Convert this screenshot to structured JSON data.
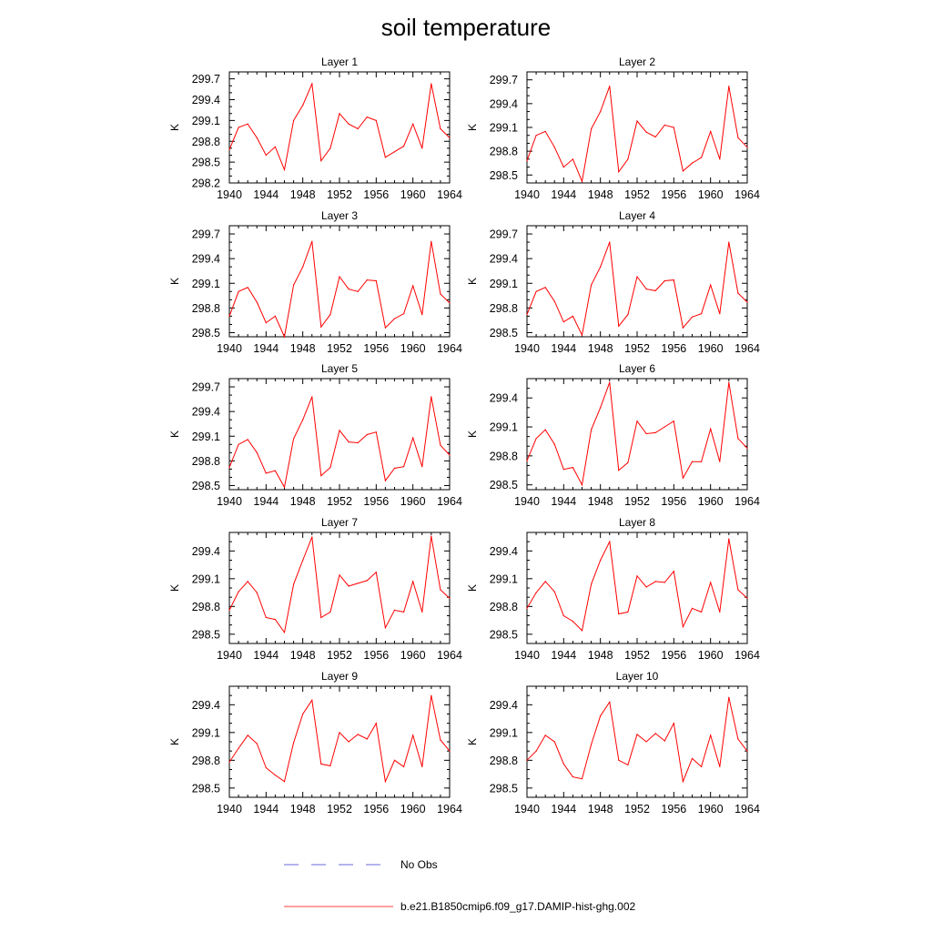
{
  "figure": {
    "title": "soil temperature"
  },
  "legend": {
    "obs_label": "No Obs",
    "obs_color": "#6a6ad8",
    "model_label": "b.e21.B1850cmip6.f09_g17.DAMIP-hist-ghg.002",
    "model_color": "#ff0000"
  },
  "chart_data": [
    {
      "type": "line",
      "title": "Layer 1",
      "ylabel": "K",
      "xlim": [
        1940,
        1964
      ],
      "ylim": [
        298.2,
        299.8
      ],
      "xticks": [
        "1940",
        "1944",
        "1948",
        "1952",
        "1956",
        "1960",
        "1964"
      ],
      "yticks": [
        "298.2",
        "298.5",
        "298.8",
        "299.1",
        "299.4",
        "299.7"
      ],
      "x": [
        1940,
        1941,
        1942,
        1943,
        1944,
        1945,
        1946,
        1947,
        1948,
        1949,
        1950,
        1951,
        1952,
        1953,
        1954,
        1955,
        1956,
        1957,
        1958,
        1959,
        1960,
        1961,
        1962,
        1963,
        1964
      ],
      "series": [
        {
          "name": "b.e21.B1850cmip6.f09_g17.DAMIP-hist-ghg.002",
          "values": [
            298.68,
            299.0,
            299.05,
            298.85,
            298.6,
            298.72,
            298.39,
            299.1,
            299.32,
            299.63,
            298.52,
            298.7,
            299.2,
            299.05,
            298.98,
            299.15,
            299.1,
            298.57,
            298.65,
            298.73,
            299.05,
            298.7,
            299.63,
            298.98,
            298.85
          ]
        }
      ]
    },
    {
      "type": "line",
      "title": "Layer 2",
      "ylabel": "K",
      "xlim": [
        1940,
        1964
      ],
      "ylim": [
        298.4,
        299.8
      ],
      "xticks": [
        "1940",
        "1944",
        "1948",
        "1952",
        "1956",
        "1960",
        "1964"
      ],
      "yticks": [
        "298.5",
        "298.8",
        "299.1",
        "299.4",
        "299.7"
      ],
      "x": [
        1940,
        1941,
        1942,
        1943,
        1944,
        1945,
        1946,
        1947,
        1948,
        1949,
        1950,
        1951,
        1952,
        1953,
        1954,
        1955,
        1956,
        1957,
        1958,
        1959,
        1960,
        1961,
        1962,
        1963,
        1964
      ],
      "series": [
        {
          "name": "b.e21.B1850cmip6.f09_g17.DAMIP-hist-ghg.002",
          "values": [
            298.68,
            299.0,
            299.05,
            298.85,
            298.6,
            298.7,
            298.42,
            299.08,
            299.3,
            299.62,
            298.54,
            298.7,
            299.18,
            299.04,
            298.98,
            299.13,
            299.1,
            298.55,
            298.65,
            298.72,
            299.05,
            298.7,
            299.62,
            298.97,
            298.85
          ]
        }
      ]
    },
    {
      "type": "line",
      "title": "Layer 3",
      "ylabel": "K",
      "xlim": [
        1940,
        1964
      ],
      "ylim": [
        298.45,
        299.8
      ],
      "xticks": [
        "1940",
        "1944",
        "1948",
        "1952",
        "1956",
        "1960",
        "1964"
      ],
      "yticks": [
        "298.5",
        "298.8",
        "299.1",
        "299.4",
        "299.7"
      ],
      "x": [
        1940,
        1941,
        1942,
        1943,
        1944,
        1945,
        1946,
        1947,
        1948,
        1949,
        1950,
        1951,
        1952,
        1953,
        1954,
        1955,
        1956,
        1957,
        1958,
        1959,
        1960,
        1961,
        1962,
        1963,
        1964
      ],
      "series": [
        {
          "name": "b.e21.B1850cmip6.f09_g17.DAMIP-hist-ghg.002",
          "values": [
            298.7,
            299.0,
            299.05,
            298.87,
            298.62,
            298.7,
            298.45,
            299.08,
            299.3,
            299.61,
            298.57,
            298.72,
            299.18,
            299.03,
            299.0,
            299.14,
            299.13,
            298.56,
            298.67,
            298.73,
            299.07,
            298.72,
            299.61,
            298.97,
            298.86
          ]
        }
      ]
    },
    {
      "type": "line",
      "title": "Layer 4",
      "ylabel": "K",
      "xlim": [
        1940,
        1964
      ],
      "ylim": [
        298.45,
        299.8
      ],
      "xticks": [
        "1940",
        "1944",
        "1948",
        "1952",
        "1956",
        "1960",
        "1964"
      ],
      "yticks": [
        "298.5",
        "298.8",
        "299.1",
        "299.4",
        "299.7"
      ],
      "x": [
        1940,
        1941,
        1942,
        1943,
        1944,
        1945,
        1946,
        1947,
        1948,
        1949,
        1950,
        1951,
        1952,
        1953,
        1954,
        1955,
        1956,
        1957,
        1958,
        1959,
        1960,
        1961,
        1962,
        1963,
        1964
      ],
      "series": [
        {
          "name": "b.e21.B1850cmip6.f09_g17.DAMIP-hist-ghg.002",
          "values": [
            298.72,
            299.0,
            299.05,
            298.88,
            298.63,
            298.7,
            298.47,
            299.08,
            299.3,
            299.6,
            298.58,
            298.72,
            299.18,
            299.03,
            299.01,
            299.13,
            299.14,
            298.56,
            298.69,
            298.73,
            299.08,
            298.73,
            299.6,
            298.98,
            298.87
          ]
        }
      ]
    },
    {
      "type": "line",
      "title": "Layer 5",
      "ylabel": "K",
      "xlim": [
        1940,
        1964
      ],
      "ylim": [
        298.45,
        299.8
      ],
      "xticks": [
        "1940",
        "1944",
        "1948",
        "1952",
        "1956",
        "1960",
        "1964"
      ],
      "yticks": [
        "298.5",
        "298.8",
        "299.1",
        "299.4",
        "299.7"
      ],
      "x": [
        1940,
        1941,
        1942,
        1943,
        1944,
        1945,
        1946,
        1947,
        1948,
        1949,
        1950,
        1951,
        1952,
        1953,
        1954,
        1955,
        1956,
        1957,
        1958,
        1959,
        1960,
        1961,
        1962,
        1963,
        1964
      ],
      "series": [
        {
          "name": "b.e21.B1850cmip6.f09_g17.DAMIP-hist-ghg.002",
          "values": [
            298.72,
            299.0,
            299.06,
            298.9,
            298.65,
            298.68,
            298.48,
            299.07,
            299.3,
            299.58,
            298.62,
            298.72,
            299.17,
            299.03,
            299.02,
            299.12,
            299.15,
            298.56,
            298.71,
            298.73,
            299.08,
            298.73,
            299.58,
            298.99,
            298.87
          ]
        }
      ]
    },
    {
      "type": "line",
      "title": "Layer 6",
      "ylabel": "K",
      "xlim": [
        1940,
        1964
      ],
      "ylim": [
        298.45,
        299.6
      ],
      "xticks": [
        "1940",
        "1944",
        "1948",
        "1952",
        "1956",
        "1960",
        "1964"
      ],
      "yticks": [
        "298.5",
        "298.8",
        "299.1",
        "299.4"
      ],
      "x": [
        1940,
        1941,
        1942,
        1943,
        1944,
        1945,
        1946,
        1947,
        1948,
        1949,
        1950,
        1951,
        1952,
        1953,
        1954,
        1955,
        1956,
        1957,
        1958,
        1959,
        1960,
        1961,
        1962,
        1963,
        1964
      ],
      "series": [
        {
          "name": "b.e21.B1850cmip6.f09_g17.DAMIP-hist-ghg.002",
          "values": [
            298.75,
            298.98,
            299.07,
            298.92,
            298.66,
            298.68,
            298.5,
            299.07,
            299.3,
            299.56,
            298.65,
            298.73,
            299.16,
            299.03,
            299.04,
            299.1,
            299.16,
            298.57,
            298.74,
            298.74,
            299.08,
            298.74,
            299.56,
            298.98,
            298.88
          ]
        }
      ]
    },
    {
      "type": "line",
      "title": "Layer 7",
      "ylabel": "K",
      "xlim": [
        1940,
        1964
      ],
      "ylim": [
        298.4,
        299.6
      ],
      "xticks": [
        "1940",
        "1944",
        "1948",
        "1952",
        "1956",
        "1960",
        "1964"
      ],
      "yticks": [
        "298.5",
        "298.8",
        "299.1",
        "299.4"
      ],
      "x": [
        1940,
        1941,
        1942,
        1943,
        1944,
        1945,
        1946,
        1947,
        1948,
        1949,
        1950,
        1951,
        1952,
        1953,
        1954,
        1955,
        1956,
        1957,
        1958,
        1959,
        1960,
        1961,
        1962,
        1963,
        1964
      ],
      "series": [
        {
          "name": "b.e21.B1850cmip6.f09_g17.DAMIP-hist-ghg.002",
          "values": [
            298.76,
            298.96,
            299.07,
            298.95,
            298.68,
            298.66,
            298.52,
            299.04,
            299.3,
            299.55,
            298.68,
            298.74,
            299.14,
            299.02,
            299.05,
            299.08,
            299.17,
            298.57,
            298.76,
            298.74,
            299.07,
            298.74,
            299.56,
            298.98,
            298.89
          ]
        }
      ]
    },
    {
      "type": "line",
      "title": "Layer 8",
      "ylabel": "K",
      "xlim": [
        1940,
        1964
      ],
      "ylim": [
        298.4,
        299.6
      ],
      "xticks": [
        "1940",
        "1944",
        "1948",
        "1952",
        "1956",
        "1960",
        "1964"
      ],
      "yticks": [
        "298.5",
        "298.8",
        "299.1",
        "299.4"
      ],
      "x": [
        1940,
        1941,
        1942,
        1943,
        1944,
        1945,
        1946,
        1947,
        1948,
        1949,
        1950,
        1951,
        1952,
        1953,
        1954,
        1955,
        1956,
        1957,
        1958,
        1959,
        1960,
        1961,
        1962,
        1963,
        1964
      ],
      "series": [
        {
          "name": "b.e21.B1850cmip6.f09_g17.DAMIP-hist-ghg.002",
          "values": [
            298.78,
            298.95,
            299.07,
            298.96,
            298.7,
            298.64,
            298.54,
            299.04,
            299.3,
            299.5,
            298.72,
            298.74,
            299.13,
            299.01,
            299.07,
            299.06,
            299.18,
            298.58,
            298.78,
            298.74,
            299.06,
            298.74,
            299.53,
            298.98,
            298.89
          ]
        }
      ]
    },
    {
      "type": "line",
      "title": "Layer 9",
      "ylabel": "K",
      "xlim": [
        1940,
        1964
      ],
      "ylim": [
        298.4,
        299.6
      ],
      "xticks": [
        "1940",
        "1944",
        "1948",
        "1952",
        "1956",
        "1960",
        "1964"
      ],
      "yticks": [
        "298.5",
        "298.8",
        "299.1",
        "299.4"
      ],
      "x": [
        1940,
        1941,
        1942,
        1943,
        1944,
        1945,
        1946,
        1947,
        1948,
        1949,
        1950,
        1951,
        1952,
        1953,
        1954,
        1955,
        1956,
        1957,
        1958,
        1959,
        1960,
        1961,
        1962,
        1963,
        1964
      ],
      "series": [
        {
          "name": "b.e21.B1850cmip6.f09_g17.DAMIP-hist-ghg.002",
          "values": [
            298.78,
            298.93,
            299.07,
            298.98,
            298.72,
            298.64,
            298.57,
            298.99,
            299.3,
            299.45,
            298.76,
            298.74,
            299.1,
            299.0,
            299.08,
            299.03,
            299.2,
            298.57,
            298.8,
            298.73,
            299.07,
            298.73,
            299.5,
            299.02,
            298.9
          ]
        }
      ]
    },
    {
      "type": "line",
      "title": "Layer 10",
      "ylabel": "K",
      "xlim": [
        1940,
        1964
      ],
      "ylim": [
        298.4,
        299.6
      ],
      "xticks": [
        "1940",
        "1944",
        "1948",
        "1952",
        "1956",
        "1960",
        "1964"
      ],
      "yticks": [
        "298.5",
        "298.8",
        "299.1",
        "299.4"
      ],
      "x": [
        1940,
        1941,
        1942,
        1943,
        1944,
        1945,
        1946,
        1947,
        1948,
        1949,
        1950,
        1951,
        1952,
        1953,
        1954,
        1955,
        1956,
        1957,
        1958,
        1959,
        1960,
        1961,
        1962,
        1963,
        1964
      ],
      "series": [
        {
          "name": "b.e21.B1850cmip6.f09_g17.DAMIP-hist-ghg.002",
          "values": [
            298.8,
            298.9,
            299.07,
            299.0,
            298.76,
            298.62,
            298.6,
            298.97,
            299.28,
            299.43,
            298.8,
            298.75,
            299.08,
            299.0,
            299.09,
            299.01,
            299.2,
            298.57,
            298.82,
            298.73,
            299.07,
            298.73,
            299.48,
            299.03,
            298.9
          ]
        }
      ]
    }
  ]
}
